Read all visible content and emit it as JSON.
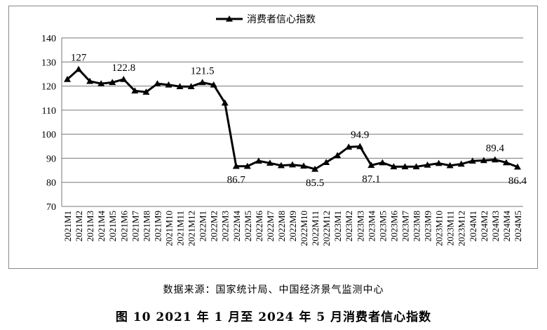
{
  "chart_data": {
    "type": "line",
    "title": "",
    "xlabel": "",
    "ylabel": "",
    "ylim": [
      70,
      140
    ],
    "yticks": [
      70,
      80,
      90,
      100,
      110,
      120,
      130,
      140
    ],
    "grid": true,
    "legend": "top-center",
    "categories": [
      "2021M1",
      "2021M2",
      "2021M3",
      "2021M4",
      "2021M5",
      "2021M6",
      "2021M7",
      "2021M8",
      "2021M9",
      "2021M10",
      "2021M11",
      "2021M12",
      "2022M1",
      "2022M2",
      "2022M3",
      "2022M4",
      "2022M5",
      "2022M6",
      "2022M7",
      "2022M8",
      "2022M9",
      "2022M10",
      "2022M11",
      "2022M12",
      "2023M1",
      "2023M2",
      "2023M3",
      "2023M4",
      "2023M5",
      "2023M6",
      "2023M7",
      "2023M8",
      "2023M9",
      "2023M10",
      "2023M11",
      "2023M12",
      "2024M1",
      "2024M2",
      "2024M3",
      "2024M4",
      "2024M5"
    ],
    "series": [
      {
        "name": "消费者信心指数",
        "color": "#000000",
        "values": [
          122.8,
          127,
          122,
          121,
          121.5,
          122.8,
          118,
          117.5,
          121,
          120.5,
          119.8,
          119.8,
          121.5,
          120.5,
          113,
          86.7,
          86.7,
          88.9,
          88,
          87,
          87.3,
          86.8,
          85.5,
          88.3,
          91.2,
          94.7,
          94.9,
          87.1,
          88.2,
          86.5,
          86.5,
          86.5,
          87.2,
          87.9,
          87,
          87.6,
          88.9,
          89.1,
          89.4,
          88.2,
          86.4
        ]
      }
    ],
    "data_labels": [
      {
        "index": 1,
        "text": "127",
        "position": "above"
      },
      {
        "index": 5,
        "text": "122.8",
        "position": "above"
      },
      {
        "index": 12,
        "text": "121.5",
        "position": "above"
      },
      {
        "index": 15,
        "text": "86.7",
        "position": "below"
      },
      {
        "index": 22,
        "text": "85.5",
        "position": "below"
      },
      {
        "index": 26,
        "text": "94.9",
        "position": "above"
      },
      {
        "index": 27,
        "text": "87.1",
        "position": "below"
      },
      {
        "index": 38,
        "text": "89.4",
        "position": "above"
      },
      {
        "index": 40,
        "text": "86.4",
        "position": "below"
      }
    ]
  },
  "source_note": "数据来源：国家统计局、中国经济景气监测中心",
  "figure_caption": "图 10  2021 年 1 月至 2024 年 5 月消费者信心指数"
}
